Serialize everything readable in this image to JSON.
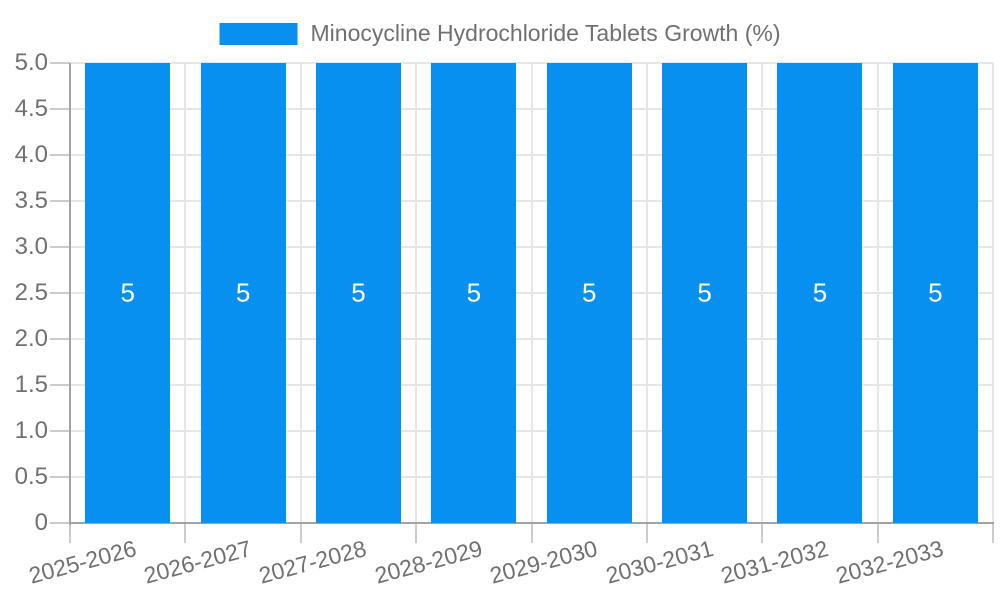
{
  "chart_data": {
    "type": "bar",
    "title": "Minocycline Hydrochloride Tablets Growth (%)",
    "xlabel": "",
    "ylabel": "",
    "categories": [
      "2025-2026",
      "2026-2027",
      "2027-2028",
      "2028-2029",
      "2029-2030",
      "2030-2031",
      "2031-2032",
      "2032-2033"
    ],
    "values": [
      5,
      5,
      5,
      5,
      5,
      5,
      5,
      5
    ],
    "bar_value_labels": [
      "5",
      "5",
      "5",
      "5",
      "5",
      "5",
      "5",
      "5"
    ],
    "ylim": [
      0,
      5
    ],
    "yticks": [
      0,
      0.5,
      1,
      1.5,
      2,
      2.5,
      3,
      3.5,
      4,
      4.5,
      5
    ],
    "ytick_labels": [
      "0",
      "0.5",
      "1.0",
      "1.5",
      "2.0",
      "2.5",
      "3.0",
      "3.5",
      "4.0",
      "4.5",
      "5.0"
    ],
    "grid": true,
    "legend_position": "top-center",
    "colors": {
      "bar": "#0890f0",
      "grid": "#e6e6e6",
      "tick": "#cccccc",
      "axis": "#a3a3a3",
      "text": "#707070",
      "bar_label_text": "#ffffff",
      "background": "#ffffff"
    }
  }
}
